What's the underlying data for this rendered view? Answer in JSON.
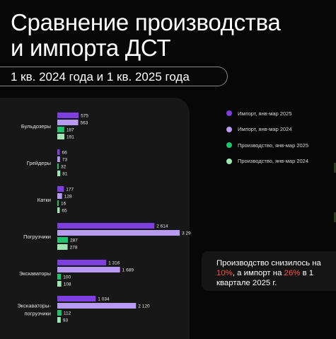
{
  "title": {
    "line1": "Сравнение производства",
    "line2": "и импорта ДСТ"
  },
  "subtitle": "1 кв. 2024 года и 1 кв. 2025 года",
  "note": {
    "part1": "Производство снизилось на ",
    "pct1": "10%",
    "part2": ", а импорт на ",
    "pct2": "26%",
    "part3": " в 1 квартале 2025 г."
  },
  "chart_data": {
    "type": "bar",
    "orientation": "horizontal",
    "categories": [
      "Бульдозеры",
      "Грейдеры",
      "Катки",
      "Погрузчики",
      "Экскаваторы",
      [
        "Экскаваторы-",
        "погрузчики"
      ]
    ],
    "series": [
      {
        "name": "Импорт, янв-мар 2025",
        "color": "#7d3fe0",
        "values": [
          575,
          66,
          177,
          2614,
          1316,
          1034
        ],
        "labels": [
          "575",
          "66",
          "177",
          "2 614",
          "1 316",
          "1 034"
        ]
      },
      {
        "name": "Импорт, янв-мар 2024",
        "color": "#b79af2",
        "values": [
          563,
          73,
          128,
          3297,
          1689,
          2120
        ],
        "labels": [
          "563",
          "73",
          "128",
          "3 297",
          "1 689",
          "2 120"
        ]
      },
      {
        "name": "Производство, янв-мар 2025",
        "color": "#1ec46c",
        "values": [
          187,
          32,
          16,
          287,
          100,
          112
        ],
        "labels": [
          "187",
          "32",
          "16",
          "287",
          "100",
          "112"
        ]
      },
      {
        "name": "Производство, янв-мар 2024",
        "color": "#9ee6b6",
        "values": [
          191,
          81,
          65,
          278,
          108,
          93
        ],
        "labels": [
          "191",
          "81",
          "65",
          "278",
          "108",
          "93"
        ]
      }
    ],
    "legend_position": "right",
    "grid": false
  }
}
